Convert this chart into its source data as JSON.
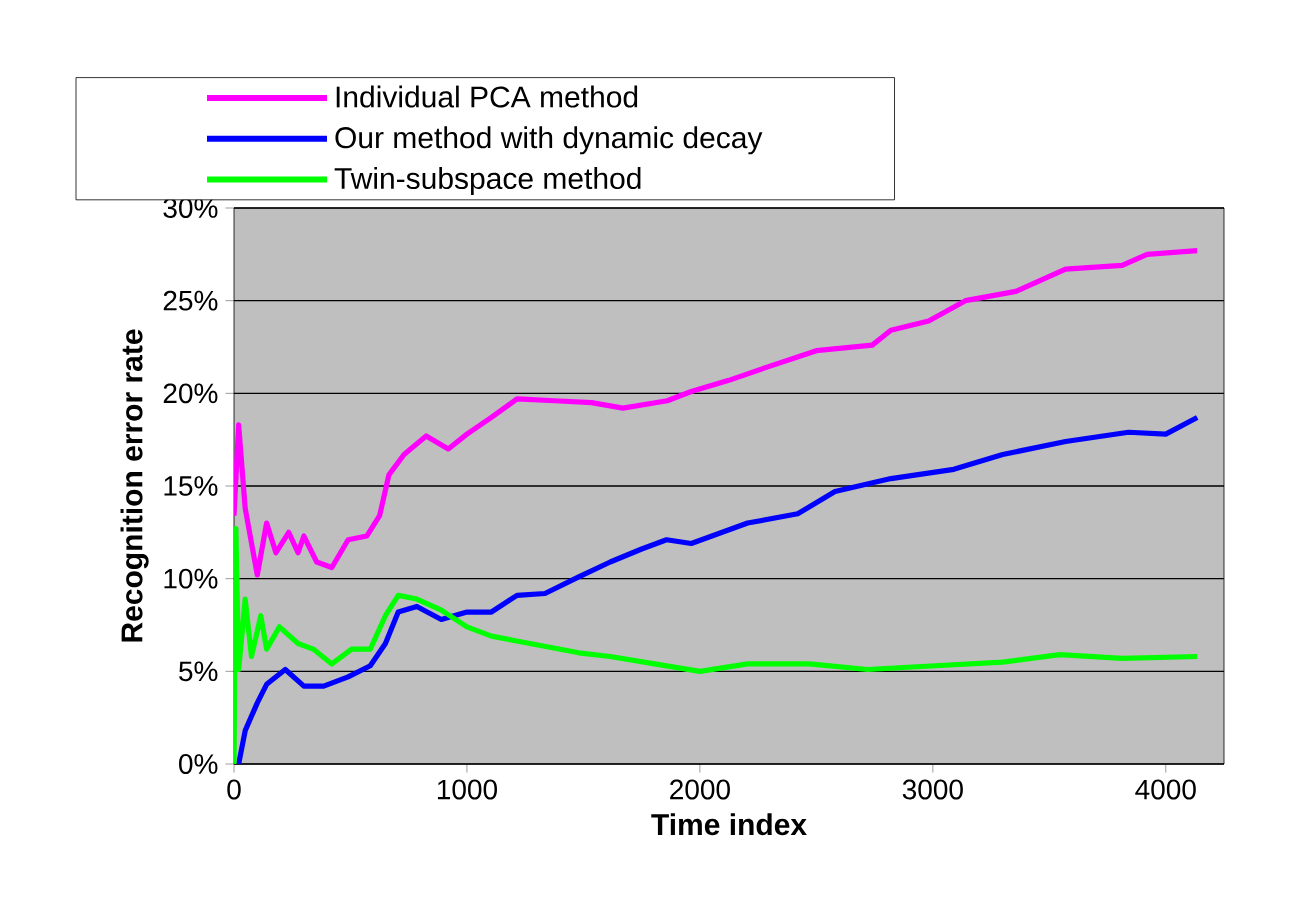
{
  "chart_data": {
    "type": "line",
    "xlabel": "Time index",
    "ylabel": "Recognition error rate",
    "xlim": [
      0,
      4250
    ],
    "xticks": [
      0,
      1000,
      2000,
      3000,
      4000
    ],
    "ylim": [
      0,
      30
    ],
    "yticks": [
      {
        "value": 0,
        "label": "0%"
      },
      {
        "value": 5,
        "label": "5%"
      },
      {
        "value": 10,
        "label": "10%"
      },
      {
        "value": 15,
        "label": "15%"
      },
      {
        "value": 20,
        "label": "20%"
      },
      {
        "value": 25,
        "label": "25%"
      },
      {
        "value": 30,
        "label": "30%"
      }
    ],
    "grid": "y",
    "legend": "top",
    "marker": "none",
    "line_style": "solid",
    "series": [
      {
        "name": "Individual PCA method",
        "color": "#ff00ff",
        "x": [
          0,
          20,
          48,
          100,
          140,
          180,
          235,
          275,
          300,
          355,
          420,
          490,
          570,
          625,
          665,
          730,
          825,
          920,
          1000,
          1105,
          1215,
          1375,
          1535,
          1670,
          1860,
          1963,
          2124,
          2285,
          2500,
          2740,
          2820,
          2982,
          3140,
          3357,
          3570,
          3813,
          3920,
          4135
        ],
        "values": [
          13.4,
          18.3,
          13.8,
          10.2,
          13,
          11.4,
          12.5,
          11.4,
          12.3,
          10.9,
          10.6,
          12.1,
          12.3,
          13.4,
          15.6,
          16.7,
          17.7,
          17,
          17.8,
          18.7,
          19.7,
          19.6,
          19.5,
          19.2,
          19.6,
          20.1,
          20.7,
          21.4,
          22.3,
          22.6,
          23.4,
          23.9,
          25,
          25.5,
          26.7,
          26.9,
          27.5,
          27.7
        ]
      },
      {
        "name": "Our method with dynamic decay",
        "color": "#0000ff",
        "x": [
          20,
          48,
          100,
          140,
          220,
          300,
          385,
          490,
          585,
          650,
          705,
          785,
          890,
          1000,
          1105,
          1215,
          1335,
          1480,
          1615,
          1750,
          1857,
          1963,
          2205,
          2420,
          2580,
          2820,
          3090,
          3300,
          3570,
          3840,
          4000,
          4135
        ],
        "values": [
          0,
          1.8,
          3.3,
          4.3,
          5.1,
          4.2,
          4.2,
          4.7,
          5.3,
          6.5,
          8.2,
          8.5,
          7.8,
          8.2,
          8.2,
          9.1,
          9.2,
          10.1,
          10.9,
          11.6,
          12.1,
          11.9,
          13,
          13.5,
          14.7,
          15.4,
          15.9,
          16.7,
          17.4,
          17.9,
          17.8,
          18.7
        ]
      },
      {
        "name": "Twin-subspace method",
        "color": "#00ff00",
        "x": [
          0,
          8,
          20,
          48,
          75,
          115,
          140,
          195,
          275,
          340,
          420,
          505,
          585,
          650,
          705,
          785,
          890,
          1000,
          1105,
          1270,
          1480,
          1615,
          1805,
          2000,
          2205,
          2470,
          2720,
          3010,
          3300,
          3545,
          3813,
          4135
        ],
        "values": [
          0,
          12.7,
          5.1,
          8.9,
          5.8,
          8,
          6.2,
          7.4,
          6.5,
          6.2,
          5.4,
          6.2,
          6.2,
          8,
          9.1,
          8.9,
          8.3,
          7.4,
          6.9,
          6.5,
          6,
          5.8,
          5.4,
          5,
          5.4,
          5.4,
          5.1,
          5.3,
          5.5,
          5.9,
          5.7,
          5.8
        ]
      }
    ]
  }
}
